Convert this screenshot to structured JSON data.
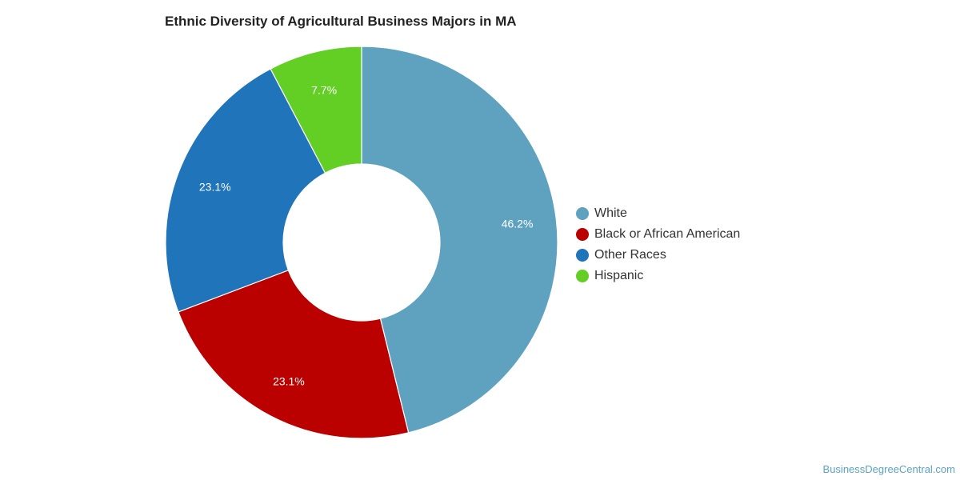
{
  "chart_data": {
    "type": "pie",
    "title": "Ethnic Diversity of Agricultural Business Majors in MA",
    "categories": [
      "White",
      "Black or African American",
      "Other Races",
      "Hispanic"
    ],
    "values": [
      46.2,
      23.1,
      23.1,
      7.7
    ],
    "labels": [
      "46.2%",
      "23.1%",
      "23.1%",
      "7.7%"
    ],
    "colors": [
      "#5fa2bf",
      "#bb0000",
      "#1f74ba",
      "#63cf25"
    ],
    "legend_position": "right"
  },
  "watermark": "BusinessDegreeCentral.com"
}
